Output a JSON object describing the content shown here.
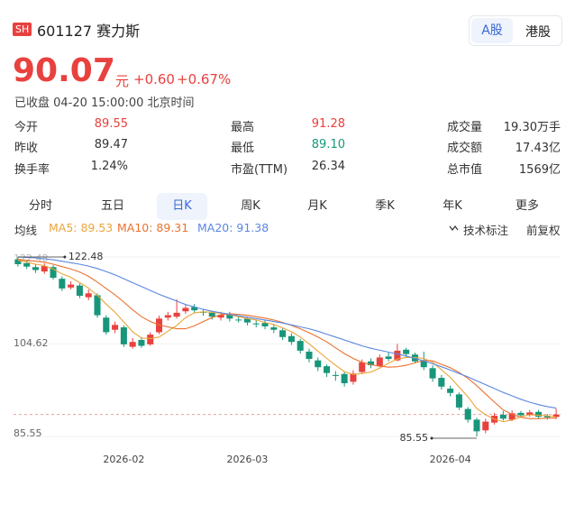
{
  "header": {
    "market": "SH",
    "code": "601127",
    "name": "赛力斯",
    "tabs": [
      "A股",
      "港股"
    ],
    "price": "90.07",
    "unit": "元",
    "change": "+0.60",
    "change_pct": "+0.67%",
    "status": "已收盘 04-20 15:00:00 北京时间"
  },
  "stats": [
    [
      [
        "今开",
        "89.55"
      ],
      [
        "最高",
        "91.28"
      ],
      [
        "成交量",
        "19.30万手"
      ]
    ],
    [
      [
        "昨收",
        "89.47"
      ],
      [
        "最低",
        "89.10"
      ],
      [
        "成交额",
        "17.43亿"
      ]
    ],
    [
      [
        "换手率",
        "1.24%"
      ],
      [
        "市盈(TTM)",
        "26.34"
      ],
      [
        "总市值",
        "1569亿"
      ]
    ]
  ],
  "periods": [
    "分时",
    "五日",
    "日K",
    "周K",
    "月K",
    "季K",
    "年K",
    "更多"
  ],
  "toolbar": {
    "ma_title": "均线",
    "annotate": "技术标注",
    "adjust": "前复权"
  },
  "chart_data": {
    "type": "candlestick",
    "up_color": "#e8413e",
    "down_color": "#17967a",
    "categories": [
      null,
      null,
      null,
      null,
      null,
      null,
      null,
      null,
      null,
      null,
      null,
      null,
      "2026-02",
      null,
      null,
      null,
      null,
      null,
      null,
      null,
      null,
      null,
      null,
      null,
      null,
      null,
      "2026-03",
      null,
      null,
      null,
      null,
      null,
      null,
      null,
      null,
      null,
      null,
      null,
      null,
      null,
      null,
      null,
      null,
      null,
      null,
      null,
      null,
      null,
      null,
      "2026-04",
      null,
      null,
      null,
      null,
      null,
      null,
      null,
      null,
      null,
      null,
      null,
      null
    ],
    "open": [
      122.0,
      121.2,
      120.4,
      119.5,
      120.4,
      118.0,
      116.2,
      116.6,
      114.2,
      114.6,
      110.0,
      107.5,
      108.0,
      104.0,
      105.4,
      104.5,
      107.0,
      110.0,
      110.2,
      111.3,
      112.2,
      111.2,
      111.0,
      110.0,
      110.8,
      109.6,
      109.8,
      108.8,
      108.9,
      108.0,
      107.4,
      106.2,
      105.2,
      103.0,
      101.2,
      100.0,
      98.2,
      98.4,
      96.8,
      98.8,
      101.0,
      100.0,
      102.0,
      101.2,
      103.4,
      102.4,
      101.2,
      99.6,
      97.6,
      95.4,
      94.2,
      91.2,
      89.0,
      86.8,
      88.4,
      90.0,
      89.0,
      90.4,
      90.0,
      90.6,
      89.8,
      89.55
    ],
    "high": [
      122.48,
      121.8,
      121.0,
      121.2,
      120.8,
      118.5,
      117.5,
      117.0,
      115.8,
      115.0,
      110.5,
      109.2,
      108.4,
      105.8,
      106.0,
      107.0,
      110.4,
      111.2,
      113.8,
      112.6,
      112.8,
      111.8,
      111.4,
      111.2,
      111.2,
      110.4,
      110.2,
      109.6,
      109.4,
      108.6,
      107.8,
      106.8,
      105.6,
      103.6,
      101.8,
      100.4,
      99.0,
      98.8,
      99.2,
      101.4,
      101.6,
      102.4,
      102.8,
      104.6,
      103.8,
      102.8,
      103.0,
      100.2,
      98.2,
      96.0,
      94.6,
      91.6,
      89.4,
      89.2,
      90.4,
      90.8,
      90.9,
      90.8,
      91.0,
      91.0,
      90.2,
      91.28
    ],
    "low": [
      120.5,
      120.0,
      119.2,
      119.0,
      117.8,
      115.5,
      115.8,
      114.0,
      113.6,
      110.0,
      106.5,
      106.8,
      104.0,
      103.6,
      103.8,
      104.2,
      106.6,
      109.4,
      109.8,
      110.8,
      111.0,
      110.4,
      109.6,
      109.4,
      109.2,
      109.0,
      108.4,
      108.0,
      107.6,
      106.8,
      105.4,
      104.4,
      102.6,
      100.8,
      99.0,
      97.8,
      97.0,
      95.8,
      96.2,
      98.4,
      99.6,
      99.8,
      101.0,
      101.0,
      101.8,
      100.6,
      99.2,
      96.8,
      95.2,
      93.8,
      91.0,
      88.4,
      85.55,
      86.2,
      88.0,
      88.8,
      88.7,
      89.4,
      89.6,
      89.2,
      89.0,
      89.1
    ],
    "close": [
      121.0,
      120.5,
      119.8,
      120.6,
      118.2,
      116.0,
      116.8,
      114.5,
      115.0,
      110.5,
      107.0,
      108.5,
      104.5,
      105.0,
      104.2,
      106.5,
      109.8,
      110.5,
      111.0,
      112.0,
      111.5,
      111.0,
      110.2,
      110.6,
      109.8,
      109.5,
      109.0,
      108.7,
      108.2,
      107.5,
      106.0,
      105.0,
      103.2,
      101.5,
      99.8,
      98.6,
      98.0,
      96.5,
      98.5,
      100.8,
      100.2,
      101.8,
      101.5,
      103.2,
      102.5,
      101.0,
      99.8,
      97.5,
      95.8,
      94.5,
      91.5,
      89.0,
      86.6,
      88.6,
      89.8,
      89.2,
      90.3,
      89.9,
      90.5,
      89.6,
      89.47,
      90.07
    ],
    "series": [
      {
        "name": "MA5: 89.53",
        "color": "#eba53a",
        "values": [
          121.8,
          121.4,
          121.0,
          120.7,
          120.0,
          119.0,
          118.3,
          117.2,
          116.1,
          114.6,
          112.8,
          111.1,
          109.1,
          107.1,
          105.8,
          105.7,
          106.0,
          107.2,
          108.4,
          110.0,
          111.0,
          111.2,
          111.1,
          110.9,
          110.6,
          110.2,
          109.8,
          109.5,
          109.0,
          108.6,
          107.9,
          107.1,
          106.0,
          104.6,
          103.1,
          101.6,
          100.2,
          98.9,
          98.3,
          98.5,
          98.8,
          99.6,
          100.6,
          101.5,
          101.8,
          101.8,
          101.6,
          100.8,
          99.3,
          97.7,
          95.7,
          93.7,
          91.3,
          90.0,
          89.1,
          88.6,
          88.9,
          89.6,
          90.0,
          89.9,
          89.8,
          89.53
        ]
      },
      {
        "name": "MA10: 89.31",
        "color": "#ea7230",
        "values": [
          122.0,
          121.8,
          121.6,
          121.4,
          121.0,
          120.5,
          120.0,
          119.4,
          118.5,
          117.3,
          116.0,
          114.7,
          113.2,
          111.6,
          110.2,
          109.2,
          108.5,
          108.1,
          107.7,
          107.7,
          108.3,
          109.2,
          110.0,
          110.6,
          110.8,
          110.7,
          110.5,
          110.2,
          109.9,
          109.5,
          109.0,
          108.4,
          107.7,
          106.9,
          106.0,
          105.0,
          103.8,
          102.6,
          101.6,
          100.8,
          100.3,
          100.0,
          99.8,
          99.9,
          100.2,
          100.7,
          101.2,
          101.1,
          100.4,
          99.7,
          98.7,
          97.5,
          96.0,
          94.3,
          92.6,
          91.0,
          90.1,
          89.5,
          89.2,
          89.2,
          89.3,
          89.31
        ]
      },
      {
        "name": "MA20: 91.38",
        "color": "#5b87e0",
        "values": [
          122.5,
          122.4,
          122.3,
          122.1,
          121.9,
          121.6,
          121.3,
          121.0,
          120.6,
          120.1,
          119.5,
          118.8,
          118.0,
          117.2,
          116.4,
          115.6,
          114.8,
          114.1,
          113.4,
          112.7,
          112.2,
          111.7,
          111.3,
          111.0,
          110.7,
          110.4,
          110.1,
          109.8,
          109.5,
          109.2,
          108.9,
          108.5,
          108.1,
          107.7,
          107.2,
          106.6,
          106.0,
          105.4,
          104.8,
          104.2,
          103.7,
          103.3,
          102.9,
          102.5,
          102.1,
          101.6,
          101.1,
          100.5,
          99.9,
          99.2,
          98.5,
          97.8,
          97.0,
          96.2,
          95.4,
          94.6,
          93.9,
          93.2,
          92.6,
          92.1,
          91.7,
          91.38
        ]
      }
    ],
    "ylim": [
      85.55,
      122.48
    ],
    "yticks": [
      122.48,
      104.62,
      85.55
    ],
    "grid": true
  }
}
